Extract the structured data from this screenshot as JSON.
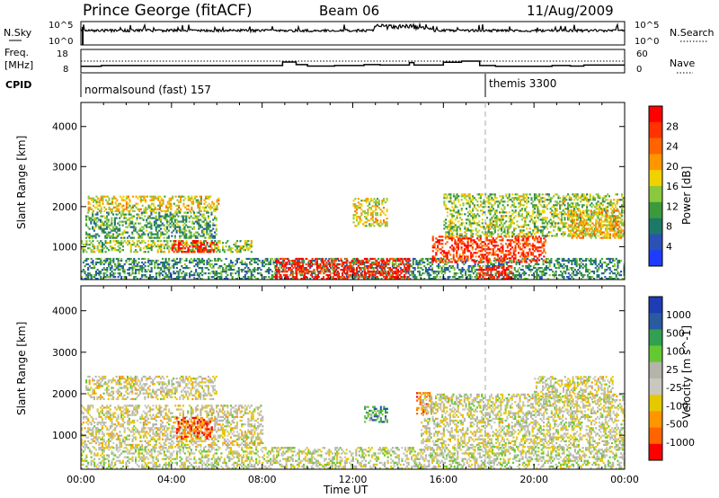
{
  "header": {
    "station": "Prince George (fitACF)",
    "beam": "Beam 06",
    "date": "11/Aug/2009"
  },
  "noise_panel": {
    "left_label": "N.Sky",
    "right_label": "N.Search",
    "left_ticks": [
      "10^5",
      "10^0"
    ],
    "right_ticks": [
      "10^5",
      "10^0"
    ]
  },
  "freq_panel": {
    "left_label_1": "Freq.",
    "left_label_2": "[MHz]",
    "right_label": "Nave",
    "left_ticks": [
      "18",
      "8"
    ],
    "right_ticks": [
      "60",
      "0"
    ],
    "freq_steps": [
      {
        "t0": 0.0,
        "t1": 0.9,
        "mhz": 10.8
      },
      {
        "t0": 0.9,
        "t1": 8.9,
        "mhz": 11.1
      },
      {
        "t0": 8.9,
        "t1": 9.5,
        "mhz": 12.6
      },
      {
        "t0": 9.5,
        "t1": 10.0,
        "mhz": 11.5
      },
      {
        "t0": 10.0,
        "t1": 11.2,
        "mhz": 10.9
      },
      {
        "t0": 11.2,
        "t1": 12.5,
        "mhz": 11.1
      },
      {
        "t0": 12.5,
        "t1": 13.2,
        "mhz": 11.5
      },
      {
        "t0": 13.2,
        "t1": 14.5,
        "mhz": 11.3
      },
      {
        "t0": 14.5,
        "t1": 14.7,
        "mhz": 12.4
      },
      {
        "t0": 14.7,
        "t1": 15.0,
        "mhz": 11.3
      },
      {
        "t0": 15.0,
        "t1": 16.0,
        "mhz": 11.3
      },
      {
        "t0": 16.0,
        "t1": 16.8,
        "mhz": 12.5
      },
      {
        "t0": 16.8,
        "t1": 17.6,
        "mhz": 13.0
      },
      {
        "t0": 17.6,
        "t1": 18.3,
        "mhz": 11.1
      },
      {
        "t0": 18.3,
        "t1": 20.8,
        "mhz": 10.8
      },
      {
        "t0": 20.8,
        "t1": 21.6,
        "mhz": 11.1
      },
      {
        "t0": 21.6,
        "t1": 22.2,
        "mhz": 10.9
      },
      {
        "t0": 22.2,
        "t1": 24.0,
        "mhz": 11.3
      }
    ]
  },
  "cpid": {
    "label": "CPID",
    "segments": [
      {
        "start_hour": 0,
        "text": "normalsound (fast) 157"
      },
      {
        "start_hour": 18,
        "text": "themis 3300"
      }
    ]
  },
  "colors": {
    "power": [
      "#1e3cff",
      "#2a52b4",
      "#1e7868",
      "#3c9a3c",
      "#8cc83c",
      "#f0d200",
      "#ff9600",
      "#ff6400",
      "#ff3200",
      "#ff0000"
    ],
    "velocity": [
      "#ff0000",
      "#ff6400",
      "#ff9600",
      "#e6c800",
      "#c8c8be",
      "#b4b4aa",
      "#64c832",
      "#32a050",
      "#2a5aa0",
      "#1e3cb4"
    ]
  },
  "chart_data": [
    {
      "type": "heatmap",
      "name": "Power",
      "xlabel": "",
      "ylabel": "Slant Range [km]",
      "x_ticks": [
        "00:00",
        "04:00",
        "08:00",
        "12:00",
        "16:00",
        "20:00",
        "00:00"
      ],
      "y_ticks": [
        "1000",
        "2000",
        "3000",
        "4000"
      ],
      "xlim_hours": [
        0,
        24
      ],
      "ylim_km": [
        180,
        4600
      ],
      "colorbar": {
        "label": "Power [dB]",
        "range": [
          0,
          30
        ],
        "ticks": [
          "4",
          "8",
          "12",
          "16",
          "20",
          "24",
          "28"
        ]
      },
      "regions": [
        {
          "t0": 0.3,
          "t1": 6.1,
          "r0": 1870,
          "r1": 2260,
          "level": 0.55
        },
        {
          "t0": 0.2,
          "t1": 6.0,
          "r0": 1200,
          "r1": 1850,
          "level": 0.35
        },
        {
          "t0": 0.0,
          "t1": 7.5,
          "r0": 850,
          "r1": 1150,
          "level": 0.45
        },
        {
          "t0": 4.0,
          "t1": 6.0,
          "r0": 850,
          "r1": 1150,
          "level": 0.95
        },
        {
          "t0": 0.0,
          "t1": 24.0,
          "r0": 180,
          "r1": 700,
          "level": 0.3
        },
        {
          "t0": 8.5,
          "t1": 14.5,
          "r0": 180,
          "r1": 700,
          "level": 0.92
        },
        {
          "t0": 12.0,
          "t1": 13.5,
          "r0": 1500,
          "r1": 2200,
          "level": 0.55
        },
        {
          "t0": 15.5,
          "t1": 20.5,
          "r0": 600,
          "r1": 1250,
          "level": 0.85
        },
        {
          "t0": 16.0,
          "t1": 24.0,
          "r0": 1250,
          "r1": 2300,
          "level": 0.45
        },
        {
          "t0": 17.5,
          "t1": 19.0,
          "r0": 180,
          "r1": 500,
          "level": 0.9
        },
        {
          "t0": 21.5,
          "t1": 24.0,
          "r0": 1200,
          "r1": 1900,
          "level": 0.6
        }
      ]
    },
    {
      "type": "heatmap",
      "name": "Velocity",
      "xlabel": "Time UT",
      "ylabel": "Slant Range [km]",
      "x_ticks": [
        "00:00",
        "04:00",
        "08:00",
        "12:00",
        "16:00",
        "20:00",
        "00:00"
      ],
      "y_ticks": [
        "1000",
        "2000",
        "3000",
        "4000"
      ],
      "xlim_hours": [
        0,
        24
      ],
      "ylim_km": [
        180,
        4600
      ],
      "colorbar": {
        "label": "Velocity [m s^-1]",
        "ticks": [
          "1000",
          "500",
          "100",
          "25",
          "-25",
          "-100",
          "-500",
          "-1000"
        ]
      },
      "regions": [
        {
          "t0": 0.2,
          "t1": 6.0,
          "r0": 1850,
          "r1": 2400,
          "level": 0.45
        },
        {
          "t0": 0.0,
          "t1": 8.0,
          "r0": 700,
          "r1": 1700,
          "level": 0.45
        },
        {
          "t0": 4.2,
          "t1": 5.8,
          "r0": 900,
          "r1": 1400,
          "level": 0.15
        },
        {
          "t0": 0.0,
          "t1": 24.0,
          "r0": 180,
          "r1": 700,
          "level": 0.5
        },
        {
          "t0": 12.5,
          "t1": 13.5,
          "r0": 1300,
          "r1": 1700,
          "level": 0.72
        },
        {
          "t0": 14.8,
          "t1": 15.5,
          "r0": 1500,
          "r1": 2000,
          "level": 0.2
        },
        {
          "t0": 15.0,
          "t1": 24.0,
          "r0": 700,
          "r1": 2000,
          "level": 0.47
        },
        {
          "t0": 20.0,
          "t1": 23.5,
          "r0": 1800,
          "r1": 2400,
          "level": 0.46
        }
      ]
    }
  ]
}
